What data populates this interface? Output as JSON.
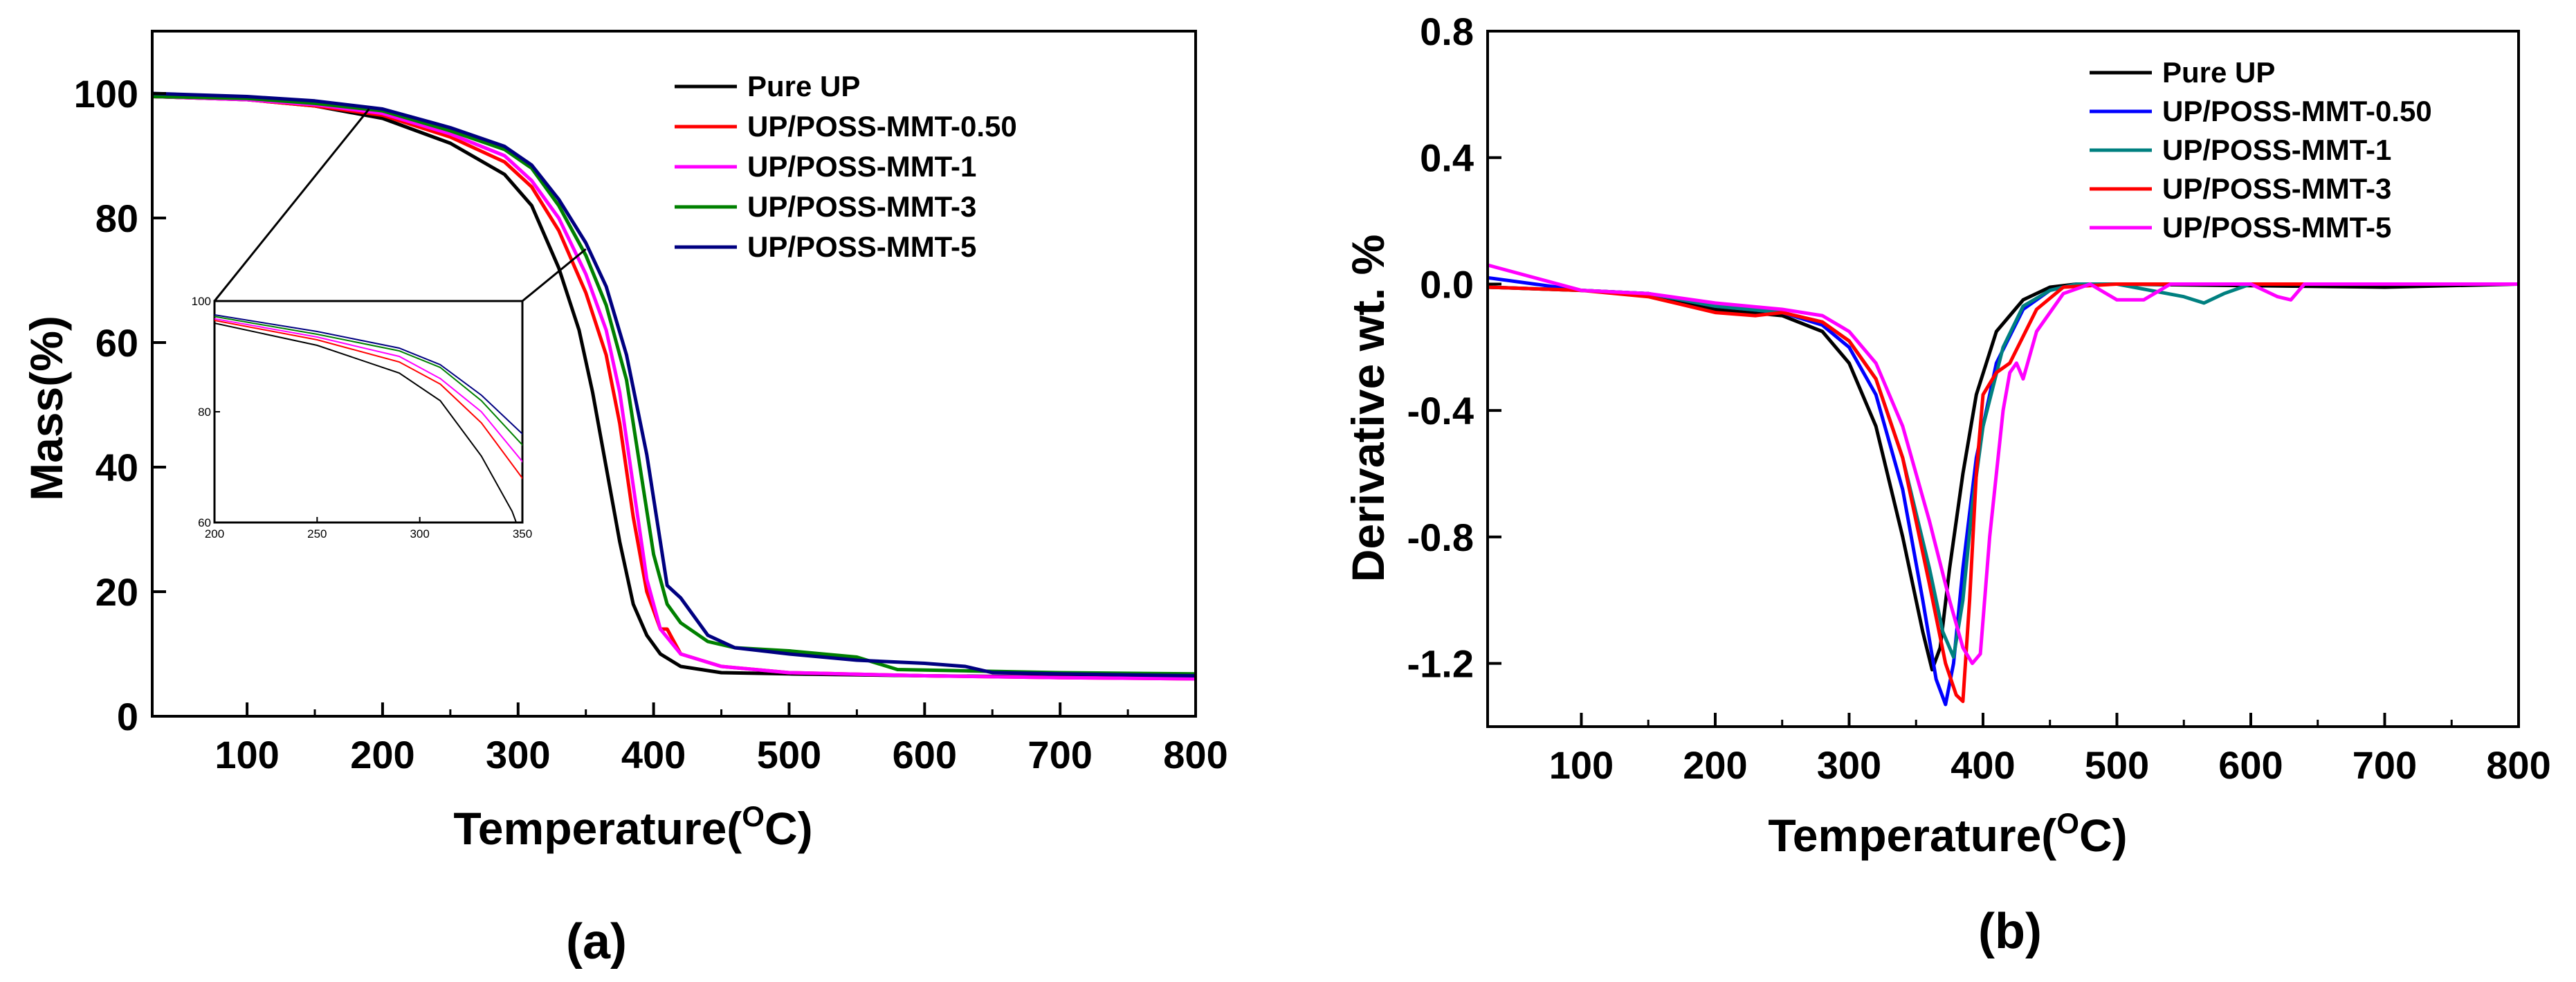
{
  "chart_data": [
    {
      "type": "line",
      "title": "",
      "panel_label": "(a)",
      "xlabel": "Temperature(",
      "xlabel_sup": "O",
      "xlabel_tail": "C)",
      "ylabel": "Mass(%)",
      "xlim": [
        30,
        800
      ],
      "ylim": [
        0,
        110
      ],
      "xticks": [
        100,
        200,
        300,
        400,
        500,
        600,
        700,
        800
      ],
      "yticks": [
        0,
        20,
        40,
        60,
        80,
        100
      ],
      "legend_position": "top-right",
      "series": [
        {
          "name": "Pure UP",
          "color": "#000000",
          "x": [
            30,
            100,
            150,
            200,
            250,
            290,
            310,
            330,
            345,
            355,
            365,
            375,
            385,
            395,
            405,
            420,
            450,
            500,
            600,
            700,
            800
          ],
          "y": [
            99.5,
            99,
            98,
            96,
            92,
            87,
            82,
            72,
            62,
            52,
            40,
            28,
            18,
            13,
            10,
            8,
            7,
            6.8,
            6.5,
            6.3,
            6.2
          ]
        },
        {
          "name": "UP/POSS-MMT-0.50",
          "color": "#ff0000",
          "x": [
            30,
            100,
            150,
            200,
            250,
            290,
            310,
            330,
            350,
            365,
            375,
            385,
            395,
            405,
            410,
            420,
            450,
            500,
            600,
            700,
            800
          ],
          "y": [
            99.5,
            99,
            98,
            96.5,
            93,
            89,
            85,
            78,
            68,
            58,
            47,
            32,
            20,
            14,
            14,
            10,
            8,
            7,
            6.5,
            6.2,
            6
          ]
        },
        {
          "name": "UP/POSS-MMT-1",
          "color": "#ff00ff",
          "x": [
            30,
            100,
            150,
            200,
            250,
            290,
            310,
            330,
            350,
            365,
            375,
            385,
            395,
            405,
            420,
            450,
            500,
            600,
            700,
            800
          ],
          "y": [
            99.5,
            99,
            98.2,
            96.8,
            93.5,
            90,
            86,
            80,
            71,
            62,
            52,
            37,
            22,
            14,
            10,
            8,
            7,
            6.5,
            6.2,
            6
          ]
        },
        {
          "name": "UP/POSS-MMT-3",
          "color": "#008000",
          "x": [
            30,
            100,
            150,
            200,
            250,
            290,
            310,
            330,
            350,
            365,
            380,
            390,
            400,
            410,
            420,
            440,
            460,
            500,
            550,
            580,
            700,
            800
          ],
          "y": [
            99.5,
            99.2,
            98.4,
            97.2,
            94,
            91,
            88,
            82,
            74,
            66,
            54,
            40,
            26,
            18,
            15,
            12,
            11,
            10.5,
            9.5,
            7.5,
            7,
            6.8
          ]
        },
        {
          "name": "UP/POSS-MMT-5",
          "color": "#000080",
          "x": [
            30,
            100,
            150,
            200,
            250,
            290,
            310,
            330,
            350,
            365,
            380,
            395,
            405,
            410,
            420,
            440,
            460,
            500,
            550,
            600,
            630,
            650,
            700,
            800
          ],
          "y": [
            100,
            99.5,
            98.8,
            97.5,
            94.5,
            91.5,
            88.5,
            83,
            76,
            69,
            58,
            42,
            28,
            21,
            19,
            13,
            11,
            10,
            9,
            8.5,
            8,
            7,
            6.8,
            6.5
          ]
        }
      ],
      "inset": {
        "xlim": [
          200,
          350
        ],
        "ylim": [
          60,
          100
        ],
        "xticks": [
          200,
          250,
          300,
          350
        ],
        "yticks": [
          60,
          80,
          100
        ],
        "source_point_1": [
          190,
          97.5
        ],
        "source_point_2": [
          350,
          75
        ]
      }
    },
    {
      "type": "line",
      "title": "",
      "panel_label": "(b)",
      "xlabel": "Temperature(",
      "xlabel_sup": "O",
      "xlabel_tail": "C)",
      "ylabel": "Derivative wt. %",
      "xlim": [
        30,
        800
      ],
      "ylim": [
        -1.4,
        0.8
      ],
      "xticks": [
        100,
        200,
        300,
        400,
        500,
        600,
        700,
        800
      ],
      "yticks": [
        0.8,
        0.4,
        0.0,
        -0.4,
        -0.8,
        -1.2
      ],
      "ytick_labels": [
        "0.8",
        "0.4",
        "0.0",
        "-0.4",
        "-0.8",
        "-1.2"
      ],
      "legend_position": "top-right",
      "series": [
        {
          "name": "Pure UP",
          "color": "#000000",
          "x": [
            30,
            100,
            150,
            200,
            250,
            280,
            300,
            320,
            340,
            355,
            362,
            368,
            375,
            385,
            395,
            410,
            430,
            450,
            470,
            500,
            700,
            800
          ],
          "y": [
            -0.01,
            -0.02,
            -0.03,
            -0.08,
            -0.1,
            -0.15,
            -0.25,
            -0.45,
            -0.8,
            -1.1,
            -1.22,
            -1.15,
            -0.9,
            -0.6,
            -0.35,
            -0.15,
            -0.05,
            -0.01,
            0,
            0,
            -0.01,
            0
          ]
        },
        {
          "name": "UP/POSS-MMT-0.50",
          "color": "#0000ff",
          "x": [
            30,
            100,
            150,
            200,
            250,
            280,
            300,
            320,
            340,
            355,
            365,
            372,
            378,
            385,
            395,
            410,
            430,
            450,
            470,
            500,
            800
          ],
          "y": [
            0.02,
            -0.02,
            -0.03,
            -0.07,
            -0.09,
            -0.13,
            -0.2,
            -0.35,
            -0.65,
            -1.0,
            -1.25,
            -1.33,
            -1.2,
            -0.9,
            -0.55,
            -0.25,
            -0.08,
            -0.02,
            0,
            0,
            0
          ]
        },
        {
          "name": "UP/POSS-MMT-1",
          "color": "#008080",
          "x": [
            30,
            100,
            150,
            200,
            250,
            280,
            300,
            320,
            340,
            360,
            370,
            378,
            385,
            392,
            400,
            415,
            430,
            450,
            470,
            500,
            550,
            565,
            580,
            600,
            800
          ],
          "y": [
            -0.01,
            -0.02,
            -0.03,
            -0.07,
            -0.09,
            -0.12,
            -0.18,
            -0.3,
            -0.55,
            -0.9,
            -1.1,
            -1.18,
            -1.0,
            -0.7,
            -0.45,
            -0.2,
            -0.07,
            -0.02,
            0,
            0,
            -0.04,
            -0.06,
            -0.03,
            0,
            0
          ]
        },
        {
          "name": "UP/POSS-MMT-3",
          "color": "#ff0000",
          "x": [
            30,
            100,
            150,
            200,
            230,
            250,
            280,
            300,
            320,
            340,
            360,
            372,
            380,
            385,
            390,
            395,
            400,
            410,
            420,
            440,
            460,
            500,
            800
          ],
          "y": [
            -0.01,
            -0.02,
            -0.04,
            -0.09,
            -0.1,
            -0.09,
            -0.12,
            -0.18,
            -0.3,
            -0.55,
            -0.95,
            -1.2,
            -1.3,
            -1.32,
            -1.0,
            -0.6,
            -0.35,
            -0.28,
            -0.25,
            -0.08,
            -0.01,
            0,
            0
          ]
        },
        {
          "name": "UP/POSS-MMT-5",
          "color": "#ff00ff",
          "x": [
            30,
            100,
            150,
            200,
            250,
            280,
            300,
            320,
            340,
            360,
            375,
            385,
            392,
            398,
            405,
            415,
            420,
            425,
            430,
            440,
            460,
            480,
            500,
            520,
            540,
            560,
            600,
            620,
            630,
            640,
            650,
            700,
            800
          ],
          "y": [
            0.06,
            -0.02,
            -0.03,
            -0.06,
            -0.08,
            -0.1,
            -0.15,
            -0.25,
            -0.45,
            -0.75,
            -1.0,
            -1.15,
            -1.2,
            -1.17,
            -0.8,
            -0.4,
            -0.28,
            -0.25,
            -0.3,
            -0.15,
            -0.03,
            0,
            -0.05,
            -0.05,
            0,
            0,
            0,
            -0.04,
            -0.05,
            0,
            0,
            0,
            0
          ]
        }
      ]
    }
  ]
}
